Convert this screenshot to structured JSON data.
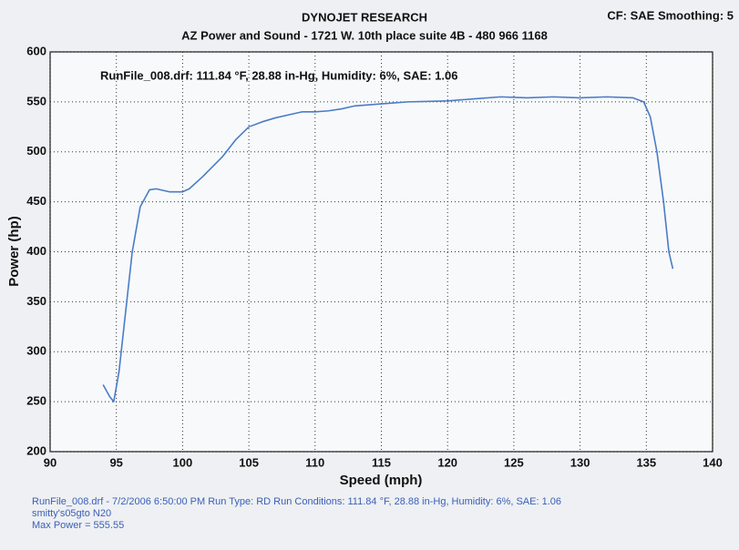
{
  "chart_data": {
    "type": "line",
    "title": "DYNOJET RESEARCH",
    "subtitle": "AZ Power and Sound - 1721 W. 10th place suite 4B - 480 966 1168",
    "header_right": "CF: SAE  Smoothing: 5",
    "annotation": "RunFile_008.drf: 111.84 °F, 28.88 in-Hg, Humidity: 6%, SAE: 1.06",
    "xlabel": "Speed (mph)",
    "ylabel": "Power (hp)",
    "footer": [
      "RunFile_008.drf - 7/2/2006 6:50:00 PM  Run Type: RD  Run Conditions: 111.84 °F, 28.88 in-Hg,  Humidity:  6%, SAE: 1.06",
      "smitty's05gto N20",
      "Max Power = 555.55"
    ],
    "x": [
      94,
      94.5,
      94.8,
      95.2,
      95.7,
      96.2,
      96.8,
      97.5,
      98,
      99,
      100,
      100.5,
      101.5,
      103,
      104,
      105,
      106,
      107,
      108,
      109,
      110,
      111,
      112,
      113,
      115,
      117,
      120,
      122,
      124,
      126,
      128,
      130,
      132,
      134,
      134.8,
      135.3,
      135.8,
      136.3,
      136.7,
      137
    ],
    "series": [
      {
        "color": "#4a7cc7",
        "values": [
          267,
          255,
          250,
          280,
          340,
          400,
          445,
          462,
          463,
          460,
          460,
          463,
          475,
          495,
          512,
          525,
          530,
          534,
          537,
          540,
          540,
          541,
          543,
          546,
          548,
          550,
          551,
          553,
          555,
          554,
          555,
          554,
          555,
          554,
          550,
          535,
          500,
          450,
          400,
          383
        ]
      }
    ],
    "xlim": [
      90,
      140
    ],
    "xticks": [
      90,
      95,
      100,
      105,
      110,
      115,
      120,
      125,
      130,
      135,
      140
    ],
    "ylim": [
      200,
      600
    ],
    "yticks": [
      200,
      250,
      300,
      350,
      400,
      450,
      500,
      550,
      600
    ],
    "grid": true
  }
}
